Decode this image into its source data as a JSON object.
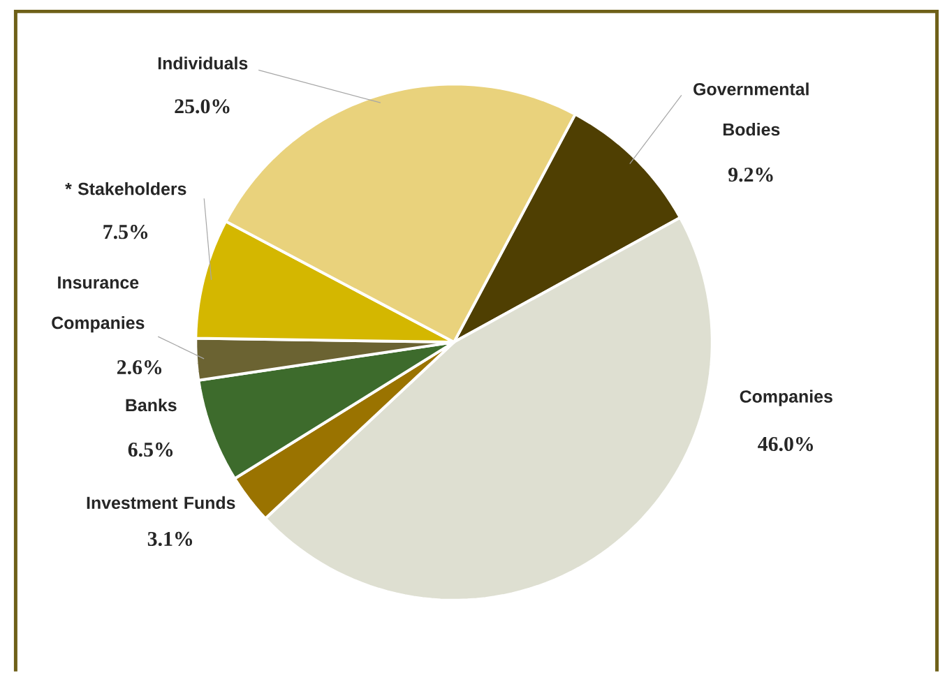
{
  "chart_data": {
    "type": "pie",
    "categories": [
      "Governmental Bodies",
      "Companies",
      "Investment Funds",
      "Banks",
      "Insurance Companies",
      "* Stakeholders",
      "Individuals"
    ],
    "values": [
      9.2,
      46.0,
      3.1,
      6.5,
      2.6,
      7.5,
      25.0
    ],
    "value_labels": [
      "9.2%",
      "46.0%",
      "3.1%",
      "6.5%",
      "2.6%",
      "7.5%",
      "25.0%"
    ],
    "colors": [
      "#4f3f02",
      "#dedfd1",
      "#9a7300",
      "#3d6b2c",
      "#6b6332",
      "#d4b700",
      "#e9d27c"
    ]
  }
}
